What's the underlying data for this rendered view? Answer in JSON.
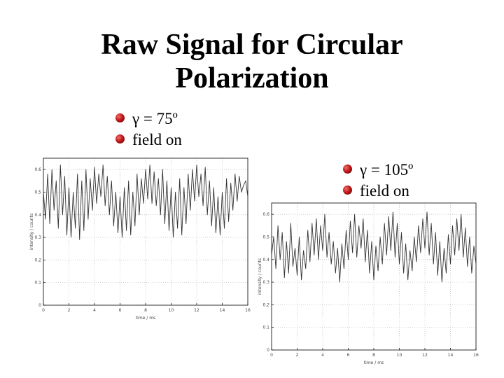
{
  "slide": {
    "title_line1": "Raw Signal for Circular",
    "title_line2": "Polarization"
  },
  "bullets_left": [
    "γ = 75º",
    "field on"
  ],
  "bullets_right": [
    "γ = 105º",
    "field on"
  ],
  "colors": {
    "bullet": "#c01818",
    "signal": "#333333",
    "grid": "#bbbbbb"
  },
  "chart_data": [
    {
      "type": "line",
      "name": "gamma-75",
      "xlabel": "time / ms",
      "ylabel": "intensity / counts",
      "xlim": [
        0,
        16
      ],
      "ylim": [
        0,
        0.65
      ],
      "xticks": [
        0,
        2,
        4,
        6,
        8,
        10,
        12,
        14,
        16
      ],
      "yticks": [
        0,
        0.1,
        0.2,
        0.3,
        0.4,
        0.5,
        0.6
      ],
      "grid": "dotted",
      "series": [
        {
          "x": [
            0,
            0.167,
            0.333,
            0.5,
            0.667,
            0.833,
            1,
            1.167,
            1.333,
            1.5,
            1.667,
            1.833,
            2,
            2.167,
            2.333,
            2.5,
            2.667,
            2.833,
            3,
            3.167,
            3.333,
            3.5,
            3.667,
            3.833,
            4,
            4.167,
            4.333,
            4.5,
            4.667,
            4.833,
            5,
            5.167,
            5.333,
            5.5,
            5.667,
            5.833,
            6,
            6.167,
            6.333,
            6.5,
            6.667,
            6.833,
            7,
            7.167,
            7.333,
            7.5,
            7.667,
            7.833,
            8,
            8.167,
            8.333,
            8.5,
            8.667,
            8.833,
            9,
            9.167,
            9.333,
            9.5,
            9.667,
            9.833,
            10,
            10.167,
            10.333,
            10.5,
            10.667,
            10.833,
            11,
            11.167,
            11.333,
            11.5,
            11.667,
            11.833,
            12,
            12.167,
            12.333,
            12.5,
            12.667,
            12.833,
            13,
            13.167,
            13.333,
            13.5,
            13.667,
            13.833,
            14,
            14.167,
            14.333,
            14.5,
            14.667,
            14.833,
            15,
            15.167,
            15.333,
            15.5,
            15.667,
            15.833,
            16
          ],
          "y": [
            0.5,
            0.38,
            0.58,
            0.36,
            0.6,
            0.42,
            0.55,
            0.34,
            0.62,
            0.4,
            0.57,
            0.31,
            0.52,
            0.3,
            0.5,
            0.34,
            0.58,
            0.29,
            0.55,
            0.33,
            0.6,
            0.38,
            0.56,
            0.42,
            0.61,
            0.45,
            0.58,
            0.48,
            0.62,
            0.44,
            0.57,
            0.4,
            0.55,
            0.35,
            0.5,
            0.32,
            0.48,
            0.3,
            0.52,
            0.33,
            0.55,
            0.31,
            0.5,
            0.35,
            0.58,
            0.4,
            0.56,
            0.45,
            0.6,
            0.47,
            0.62,
            0.45,
            0.59,
            0.44,
            0.56,
            0.4,
            0.6,
            0.36,
            0.55,
            0.33,
            0.52,
            0.3,
            0.5,
            0.34,
            0.56,
            0.31,
            0.52,
            0.36,
            0.58,
            0.42,
            0.6,
            0.46,
            0.62,
            0.48,
            0.58,
            0.44,
            0.61,
            0.4,
            0.55,
            0.35,
            0.52,
            0.32,
            0.48,
            0.31,
            0.5,
            0.34,
            0.56,
            0.37,
            0.54,
            0.42,
            0.58,
            0.46,
            0.57,
            0.5,
            0.53,
            0.55,
            0.48
          ]
        }
      ]
    },
    {
      "type": "line",
      "name": "gamma-105",
      "xlabel": "time / ms",
      "ylabel": "intensity / counts",
      "xlim": [
        0,
        16
      ],
      "ylim": [
        0,
        0.65
      ],
      "xticks": [
        0,
        2,
        4,
        6,
        8,
        10,
        12,
        14,
        16
      ],
      "yticks": [
        0,
        0.1,
        0.2,
        0.3,
        0.4,
        0.5,
        0.6
      ],
      "grid": "dotted",
      "series": [
        {
          "x": [
            0,
            0.167,
            0.333,
            0.5,
            0.667,
            0.833,
            1,
            1.167,
            1.333,
            1.5,
            1.667,
            1.833,
            2,
            2.167,
            2.333,
            2.5,
            2.667,
            2.833,
            3,
            3.167,
            3.333,
            3.5,
            3.667,
            3.833,
            4,
            4.167,
            4.333,
            4.5,
            4.667,
            4.833,
            5,
            5.167,
            5.333,
            5.5,
            5.667,
            5.833,
            6,
            6.167,
            6.333,
            6.5,
            6.667,
            6.833,
            7,
            7.167,
            7.333,
            7.5,
            7.667,
            7.833,
            8,
            8.167,
            8.333,
            8.5,
            8.667,
            8.833,
            9,
            9.167,
            9.333,
            9.5,
            9.667,
            9.833,
            10,
            10.167,
            10.333,
            10.5,
            10.667,
            10.833,
            11,
            11.167,
            11.333,
            11.5,
            11.667,
            11.833,
            12,
            12.167,
            12.333,
            12.5,
            12.667,
            12.833,
            13,
            13.167,
            13.333,
            13.5,
            13.667,
            13.833,
            14,
            14.167,
            14.333,
            14.5,
            14.667,
            14.833,
            15,
            15.167,
            15.333,
            15.5,
            15.667,
            15.833,
            16
          ],
          "y": [
            0.42,
            0.5,
            0.36,
            0.55,
            0.4,
            0.52,
            0.32,
            0.48,
            0.34,
            0.56,
            0.37,
            0.45,
            0.33,
            0.5,
            0.31,
            0.44,
            0.36,
            0.53,
            0.39,
            0.56,
            0.42,
            0.58,
            0.4,
            0.55,
            0.44,
            0.6,
            0.41,
            0.52,
            0.38,
            0.48,
            0.34,
            0.45,
            0.3,
            0.47,
            0.36,
            0.53,
            0.4,
            0.57,
            0.43,
            0.6,
            0.41,
            0.55,
            0.45,
            0.58,
            0.39,
            0.53,
            0.34,
            0.48,
            0.31,
            0.46,
            0.35,
            0.5,
            0.38,
            0.56,
            0.42,
            0.59,
            0.44,
            0.61,
            0.41,
            0.56,
            0.38,
            0.52,
            0.34,
            0.47,
            0.31,
            0.44,
            0.35,
            0.5,
            0.39,
            0.55,
            0.43,
            0.58,
            0.45,
            0.61,
            0.42,
            0.56,
            0.38,
            0.52,
            0.33,
            0.48,
            0.3,
            0.45,
            0.34,
            0.51,
            0.38,
            0.55,
            0.42,
            0.58,
            0.44,
            0.6,
            0.41,
            0.54,
            0.37,
            0.5,
            0.34,
            0.46,
            0.38
          ]
        }
      ]
    }
  ]
}
